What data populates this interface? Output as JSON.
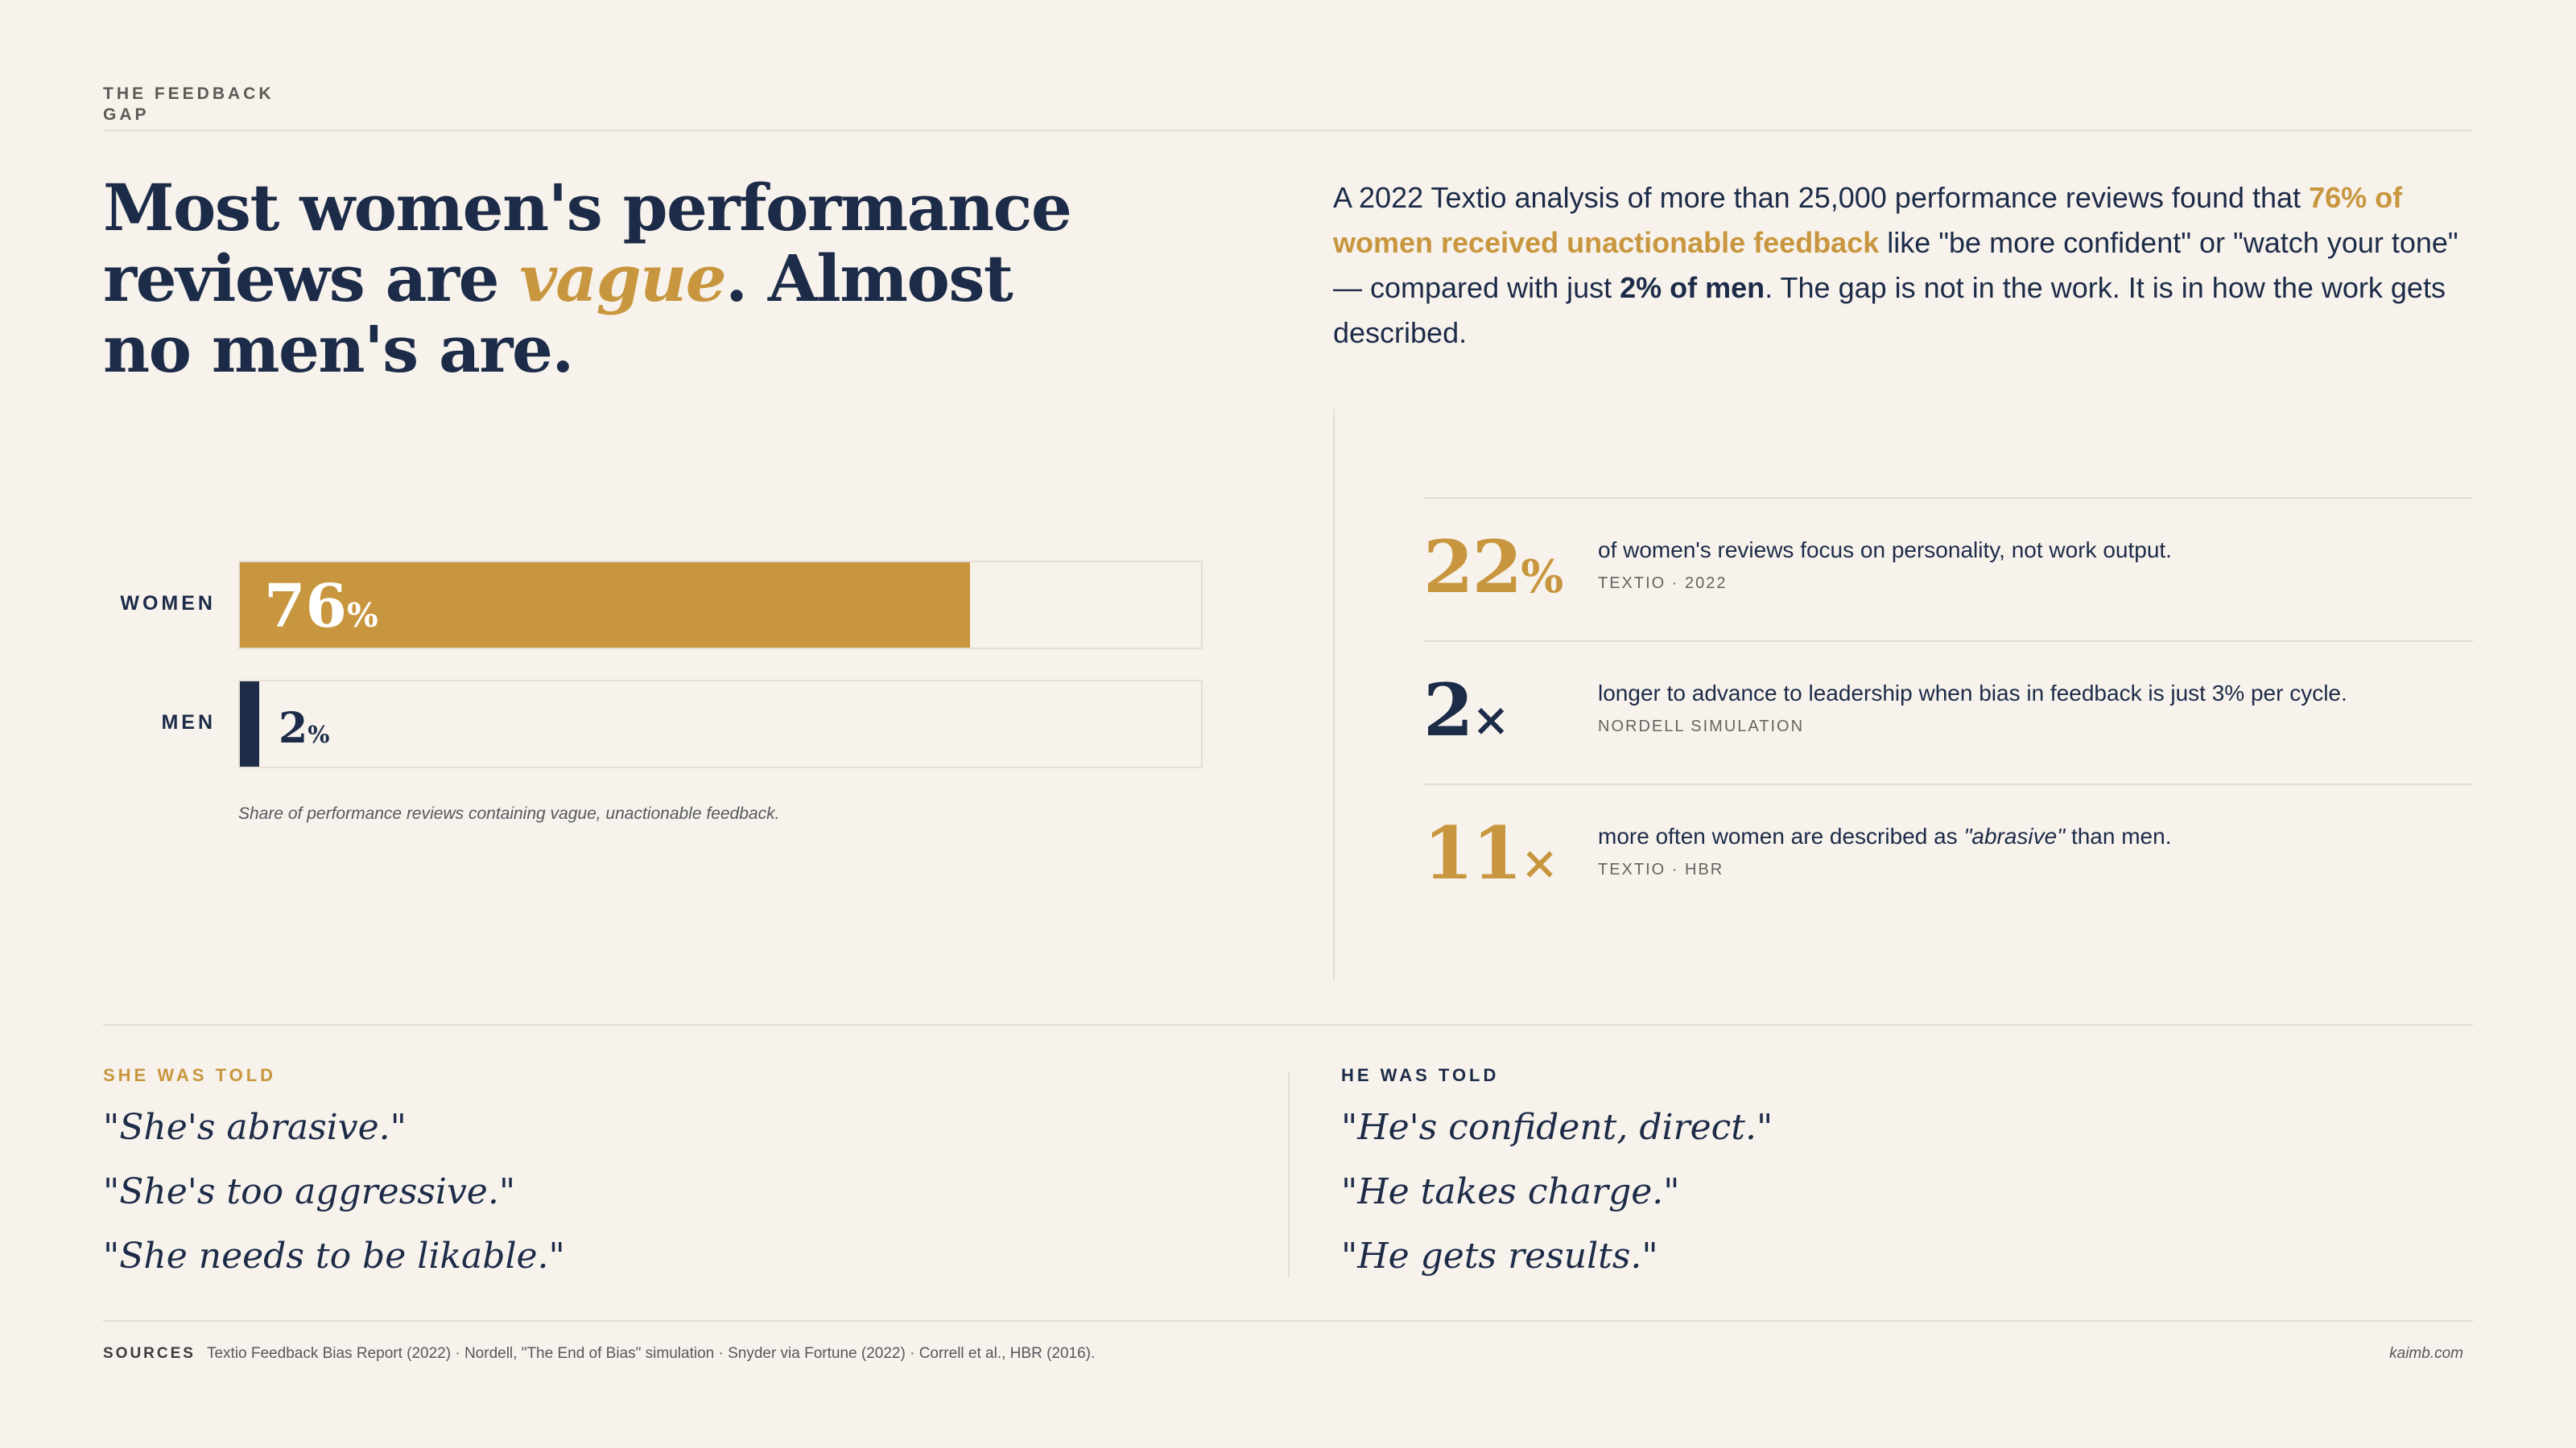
{
  "kicker": "THE FEEDBACK GAP",
  "headline": {
    "part1": "Most women's performance reviews are ",
    "accent": "vague",
    "part2": ". Almost no men's are."
  },
  "intro": {
    "p1": "A 2022 Textio analysis of more than 25,000 performance reviews found that ",
    "highlight": "76% of women received unactionable feedback",
    "p2": " like \"be more confident\" or \"watch your tone\" — compared with just ",
    "bold": "2% of men",
    "p3": ". The gap is not in the work. It is in how the work gets described."
  },
  "chart_data": {
    "type": "bar",
    "orientation": "horizontal",
    "categories": [
      "WOMEN",
      "MEN"
    ],
    "values": [
      76,
      2
    ],
    "value_suffix": "%",
    "xlim": [
      0,
      100
    ],
    "colors": [
      "#c8963e",
      "#1c2b48"
    ],
    "caption": "Share of performance reviews containing vague, unactionable feedback."
  },
  "stats": [
    {
      "number": "22",
      "unit": "%",
      "color": "#c8963e",
      "text_before": "of women's reviews focus on personality, not work output.",
      "text_em": "",
      "text_after": "",
      "source": "TEXTIO · 2022"
    },
    {
      "number": "2",
      "unit": "×",
      "color": "#1c2b48",
      "text_before": "longer to advance to leadership when bias in feedback is just 3% per cycle.",
      "text_em": "",
      "text_after": "",
      "source": "NORDELL SIMULATION"
    },
    {
      "number": "11",
      "unit": "×",
      "color": "#c8963e",
      "text_before": "more often women are described as ",
      "text_em": "\"abrasive\"",
      "text_after": " than men.",
      "source": "TEXTIO · HBR"
    }
  ],
  "quotes": {
    "she": {
      "heading": "SHE WAS TOLD",
      "color": "#c8963e",
      "items": [
        "\"She's abrasive.\"",
        "\"She's too aggressive.\"",
        "\"She needs to be likable.\""
      ]
    },
    "he": {
      "heading": "HE WAS TOLD",
      "color": "#1c2b48",
      "items": [
        "\"He's confident, direct.\"",
        "\"He takes charge.\"",
        "\"He gets results.\""
      ]
    }
  },
  "footer": {
    "label": "SOURCES",
    "text": "Textio Feedback Bias Report (2022) · Nordell, \"The End of Bias\" simulation · Snyder via Fortune (2022) · Correll et al., HBR (2016).",
    "credit": "kaimb.com"
  }
}
